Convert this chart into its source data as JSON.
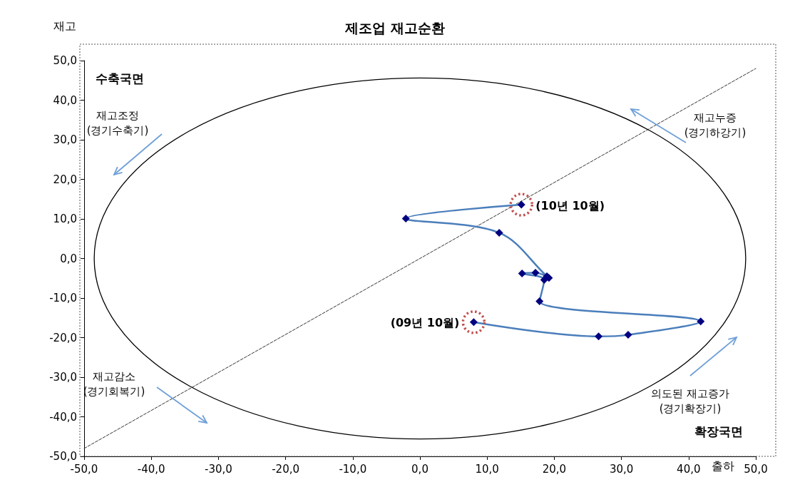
{
  "chart_data": {
    "type": "line",
    "title": "제조업 재고순환",
    "xlabel": "출하",
    "ylabel": "재고",
    "series": [
      {
        "color": "#4a7ebb",
        "marker": "diamond",
        "line_style": "solid",
        "x": [
          8.0,
          26.6,
          31.0,
          41.8,
          17.8,
          18.5,
          15.2,
          17.2,
          19.2,
          18.9,
          11.8,
          -2.1,
          15.1
        ],
        "values": [
          -16.1,
          -19.7,
          -19.3,
          -15.9,
          -10.8,
          -5.4,
          -3.8,
          -3.6,
          -4.9,
          -4.5,
          6.5,
          10.1,
          13.6
        ]
      },
      {
        "color": "#333333",
        "marker": "none",
        "line_style": "dashed",
        "x": [
          -50,
          50
        ],
        "values": [
          -48,
          48
        ]
      }
    ],
    "annotations": [
      "수축국면",
      "재고조정\n(경기수축기)",
      "재고누증\n(경기하강기)",
      "재고감소\n(경기회복기)",
      "의도된 재고증가\n(경기확장기)",
      "확장국면",
      {
        "text": "(10년 10월)",
        "x": 15.1,
        "y": 13.6
      },
      {
        "text": "(09년 10월)",
        "x": 8.0,
        "y": -16.1
      }
    ],
    "xlim": [
      -50,
      50
    ],
    "ylim": [
      -50,
      50
    ],
    "xticks": [
      {
        "value": -50,
        "label": "-50,0"
      },
      {
        "value": -40,
        "label": "-40,0"
      },
      {
        "value": -30,
        "label": "-30,0"
      },
      {
        "value": -20,
        "label": "-20,0"
      },
      {
        "value": -10,
        "label": "-10,0"
      },
      {
        "value": 0,
        "label": "0,0"
      },
      {
        "value": 10,
        "label": "10,0"
      },
      {
        "value": 20,
        "label": "20,0"
      },
      {
        "value": 30,
        "label": "30,0"
      },
      {
        "value": 40,
        "label": "40,0"
      },
      {
        "value": 50,
        "label": "50,0"
      }
    ],
    "yticks": [
      {
        "value": -50,
        "label": "-50,0"
      },
      {
        "value": -40,
        "label": "-40,0"
      },
      {
        "value": -30,
        "label": "-30,0"
      },
      {
        "value": -20,
        "label": "-20,0"
      },
      {
        "value": -10,
        "label": "-10,0"
      },
      {
        "value": 0,
        "label": "0,0"
      },
      {
        "value": 10,
        "label": "10,0"
      },
      {
        "value": 20,
        "label": "20,0"
      },
      {
        "value": 30,
        "label": "30,0"
      },
      {
        "value": 40,
        "label": "40,0"
      },
      {
        "value": 50,
        "label": "50,0"
      }
    ],
    "grid": false
  }
}
